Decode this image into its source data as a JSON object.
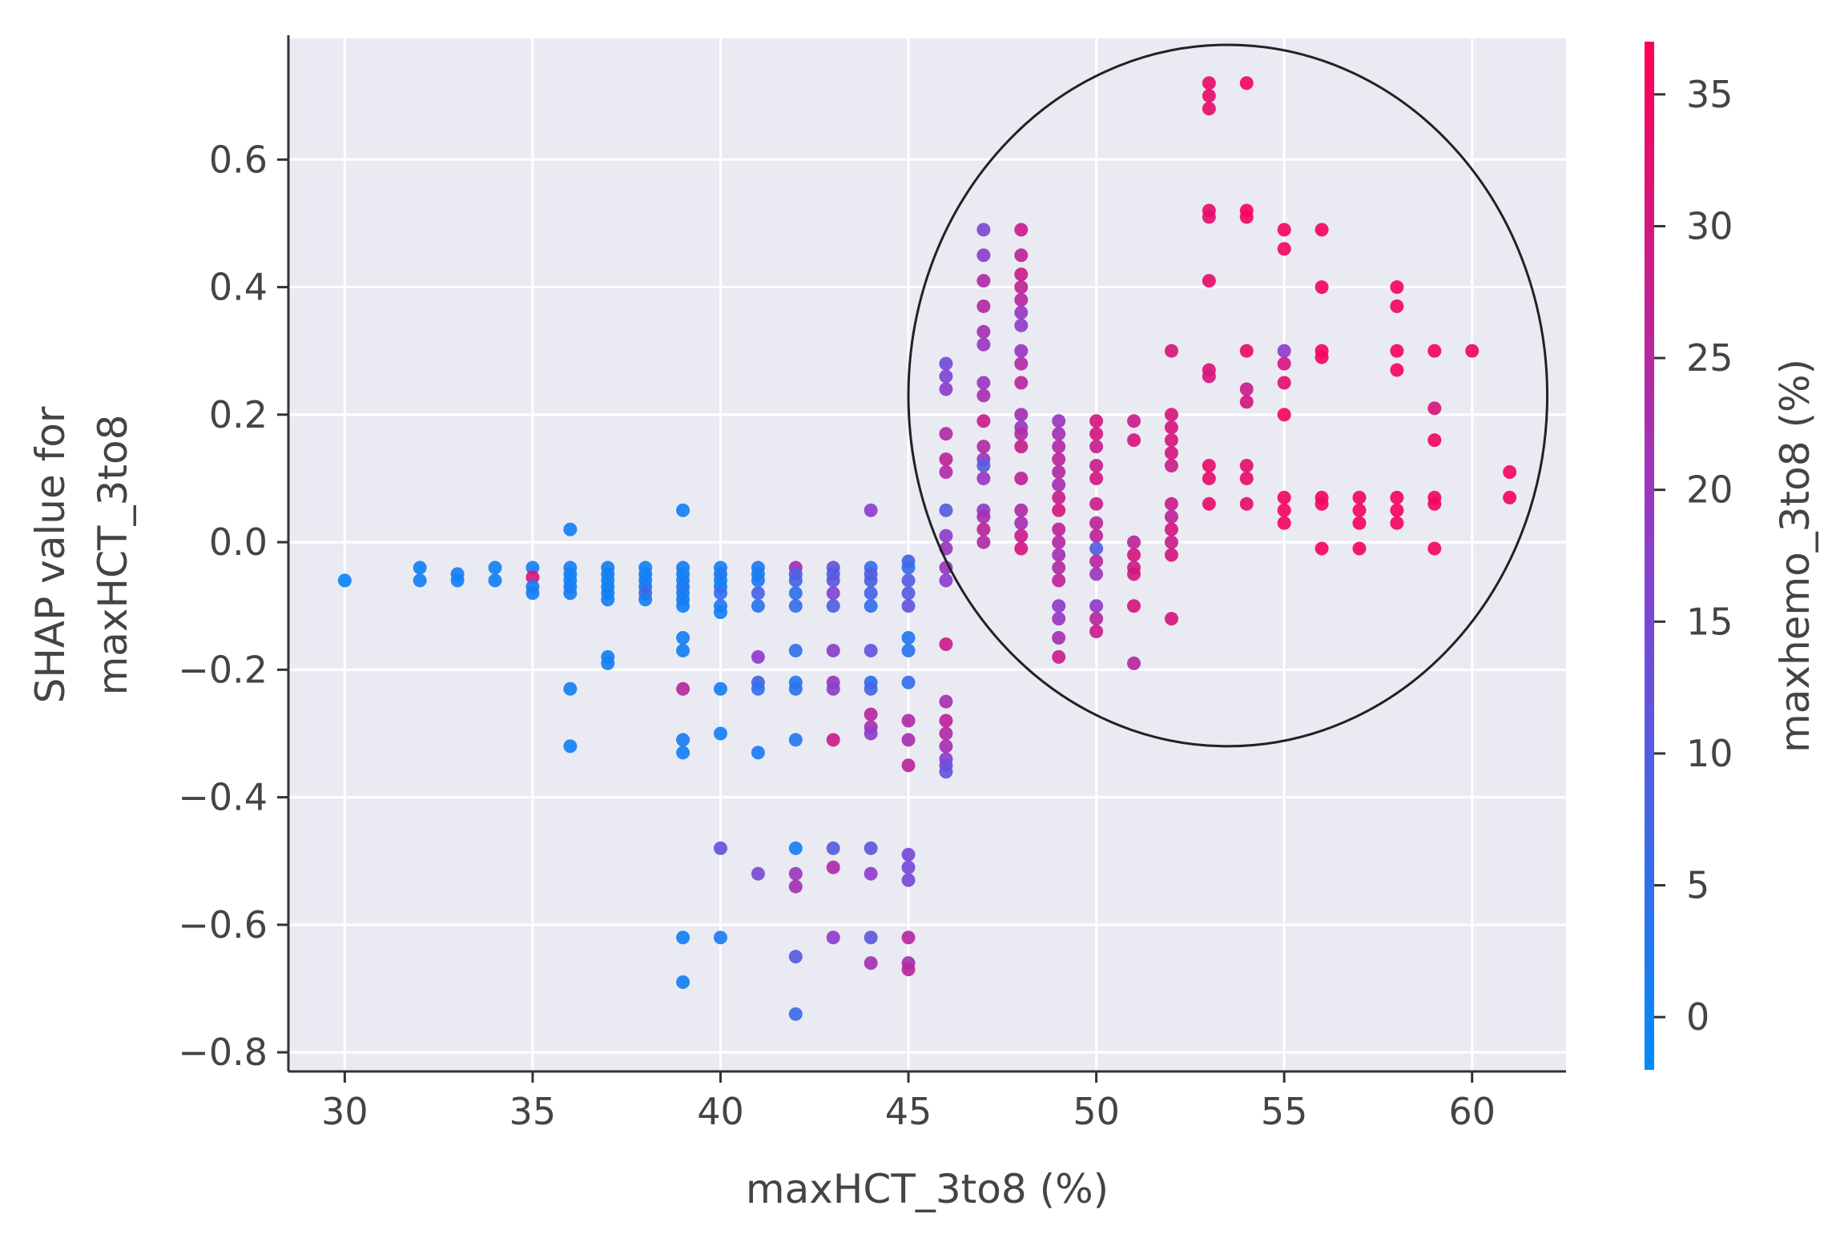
{
  "chart_data": {
    "type": "scatter",
    "xlabel": "maxHCT_3to8 (%)",
    "ylabel_lines": [
      "SHAP value for",
      "maxHCT_3to8"
    ],
    "xlim": [
      28.5,
      62.5
    ],
    "ylim": [
      -0.83,
      0.79
    ],
    "xticks": [
      30,
      35,
      40,
      45,
      50,
      55,
      60
    ],
    "yticks": [
      -0.8,
      -0.6,
      -0.4,
      -0.2,
      0.0,
      0.2,
      0.4,
      0.6
    ],
    "grid": true,
    "background_color": "#eaeaf2",
    "color_low": "#008bfb",
    "color_high": "#ff0052",
    "colorbar": {
      "label": "maxhemo_3to8 (%)",
      "range": [
        -2,
        37
      ],
      "ticks": [
        0,
        5,
        10,
        15,
        20,
        25,
        30,
        35
      ]
    },
    "annotation": {
      "shape": "ellipse",
      "center": [
        53.5,
        0.23
      ],
      "radius_x": 8.5,
      "radius_y": 0.55,
      "description": "circled high-SHAP region"
    },
    "points": [
      [
        30,
        -0.06,
        0
      ],
      [
        32,
        -0.04,
        1
      ],
      [
        32,
        -0.06,
        1
      ],
      [
        33,
        -0.05,
        1
      ],
      [
        33,
        -0.06,
        1
      ],
      [
        34,
        -0.04,
        1
      ],
      [
        34,
        -0.06,
        1
      ],
      [
        35,
        -0.04,
        1
      ],
      [
        35,
        -0.055,
        30
      ],
      [
        35,
        -0.07,
        2
      ],
      [
        35,
        -0.08,
        1
      ],
      [
        36,
        0.02,
        1
      ],
      [
        36,
        -0.04,
        1
      ],
      [
        36,
        -0.05,
        1
      ],
      [
        36,
        -0.06,
        1
      ],
      [
        36,
        -0.07,
        1
      ],
      [
        36,
        -0.08,
        2
      ],
      [
        36,
        -0.23,
        1
      ],
      [
        36,
        -0.32,
        1
      ],
      [
        37,
        -0.04,
        1
      ],
      [
        37,
        -0.05,
        1
      ],
      [
        37,
        -0.06,
        1
      ],
      [
        37,
        -0.07,
        1
      ],
      [
        37,
        -0.08,
        1
      ],
      [
        37,
        -0.09,
        1
      ],
      [
        37,
        -0.18,
        1
      ],
      [
        37,
        -0.19,
        1
      ],
      [
        38,
        -0.04,
        1
      ],
      [
        38,
        -0.05,
        1
      ],
      [
        38,
        -0.06,
        1
      ],
      [
        38,
        -0.07,
        2
      ],
      [
        38,
        -0.08,
        8
      ],
      [
        38,
        -0.09,
        1
      ],
      [
        39,
        0.05,
        1
      ],
      [
        39,
        -0.04,
        1
      ],
      [
        39,
        -0.05,
        1
      ],
      [
        39,
        -0.06,
        1
      ],
      [
        39,
        -0.07,
        2
      ],
      [
        39,
        -0.08,
        3
      ],
      [
        39,
        -0.09,
        1
      ],
      [
        39,
        -0.1,
        1
      ],
      [
        39,
        -0.15,
        1
      ],
      [
        39,
        -0.17,
        1
      ],
      [
        39,
        -0.23,
        25
      ],
      [
        39,
        -0.31,
        2
      ],
      [
        39,
        -0.33,
        1
      ],
      [
        39,
        -0.62,
        1
      ],
      [
        39,
        -0.69,
        1
      ],
      [
        40,
        -0.04,
        1
      ],
      [
        40,
        -0.05,
        3
      ],
      [
        40,
        -0.06,
        1
      ],
      [
        40,
        -0.07,
        1
      ],
      [
        40,
        -0.08,
        5
      ],
      [
        40,
        -0.1,
        2
      ],
      [
        40,
        -0.11,
        1
      ],
      [
        40,
        -0.23,
        1
      ],
      [
        40,
        -0.3,
        1
      ],
      [
        40,
        -0.48,
        12
      ],
      [
        40,
        -0.62,
        2
      ],
      [
        41,
        -0.04,
        3
      ],
      [
        41,
        -0.05,
        1
      ],
      [
        41,
        -0.06,
        2
      ],
      [
        41,
        -0.08,
        8
      ],
      [
        41,
        -0.1,
        4
      ],
      [
        41,
        -0.18,
        18
      ],
      [
        41,
        -0.22,
        8
      ],
      [
        41,
        -0.23,
        5
      ],
      [
        41,
        -0.33,
        2
      ],
      [
        41,
        -0.52,
        15
      ],
      [
        42,
        -0.04,
        22
      ],
      [
        42,
        -0.05,
        10
      ],
      [
        42,
        -0.06,
        8
      ],
      [
        42,
        -0.08,
        5
      ],
      [
        42,
        -0.1,
        6
      ],
      [
        42,
        -0.17,
        5
      ],
      [
        42,
        -0.22,
        3
      ],
      [
        42,
        -0.23,
        4
      ],
      [
        42,
        -0.31,
        3
      ],
      [
        42,
        -0.48,
        1
      ],
      [
        42,
        -0.52,
        20
      ],
      [
        42,
        -0.54,
        22
      ],
      [
        42,
        -0.65,
        10
      ],
      [
        42,
        -0.74,
        6
      ],
      [
        43,
        -0.04,
        12
      ],
      [
        43,
        -0.05,
        10
      ],
      [
        43,
        -0.06,
        11
      ],
      [
        43,
        -0.08,
        16
      ],
      [
        43,
        -0.1,
        9
      ],
      [
        43,
        -0.17,
        18
      ],
      [
        43,
        -0.22,
        20
      ],
      [
        43,
        -0.23,
        18
      ],
      [
        43,
        -0.31,
        28
      ],
      [
        43,
        -0.48,
        10
      ],
      [
        43,
        -0.51,
        24
      ],
      [
        43,
        -0.62,
        18
      ],
      [
        44,
        0.05,
        18
      ],
      [
        44,
        -0.04,
        6
      ],
      [
        44,
        -0.05,
        10
      ],
      [
        44,
        -0.06,
        9
      ],
      [
        44,
        -0.08,
        8
      ],
      [
        44,
        -0.1,
        5
      ],
      [
        44,
        -0.17,
        12
      ],
      [
        44,
        -0.22,
        4
      ],
      [
        44,
        -0.23,
        8
      ],
      [
        44,
        -0.27,
        25
      ],
      [
        44,
        -0.29,
        22
      ],
      [
        44,
        -0.3,
        18
      ],
      [
        44,
        -0.48,
        11
      ],
      [
        44,
        -0.52,
        18
      ],
      [
        44,
        -0.62,
        11
      ],
      [
        44,
        -0.66,
        22
      ],
      [
        45,
        -0.03,
        8
      ],
      [
        45,
        -0.04,
        6
      ],
      [
        45,
        -0.06,
        10
      ],
      [
        45,
        -0.08,
        10
      ],
      [
        45,
        -0.1,
        12
      ],
      [
        45,
        -0.15,
        3
      ],
      [
        45,
        -0.17,
        4
      ],
      [
        45,
        -0.22,
        5
      ],
      [
        45,
        -0.28,
        24
      ],
      [
        45,
        -0.31,
        22
      ],
      [
        45,
        -0.35,
        25
      ],
      [
        45,
        -0.49,
        15
      ],
      [
        45,
        -0.51,
        15
      ],
      [
        45,
        -0.53,
        15
      ],
      [
        45,
        -0.62,
        25
      ],
      [
        45,
        -0.66,
        22
      ],
      [
        45,
        -0.67,
        25
      ],
      [
        46,
        0.28,
        14
      ],
      [
        46,
        0.26,
        16
      ],
      [
        46,
        0.24,
        18
      ],
      [
        46,
        0.17,
        24
      ],
      [
        46,
        0.13,
        26
      ],
      [
        46,
        0.11,
        24
      ],
      [
        46,
        0.05,
        10
      ],
      [
        46,
        0.01,
        18
      ],
      [
        46,
        -0.01,
        20
      ],
      [
        46,
        -0.04,
        20
      ],
      [
        46,
        -0.06,
        18
      ],
      [
        46,
        -0.16,
        28
      ],
      [
        46,
        -0.25,
        22
      ],
      [
        46,
        -0.28,
        26
      ],
      [
        46,
        -0.3,
        24
      ],
      [
        46,
        -0.32,
        22
      ],
      [
        46,
        -0.34,
        18
      ],
      [
        46,
        -0.35,
        14
      ],
      [
        46,
        -0.36,
        12
      ],
      [
        47,
        0.49,
        16
      ],
      [
        47,
        0.45,
        18
      ],
      [
        47,
        0.41,
        24
      ],
      [
        47,
        0.37,
        24
      ],
      [
        47,
        0.33,
        22
      ],
      [
        47,
        0.31,
        20
      ],
      [
        47,
        0.25,
        20
      ],
      [
        47,
        0.23,
        22
      ],
      [
        47,
        0.19,
        28
      ],
      [
        47,
        0.15,
        24
      ],
      [
        47,
        0.13,
        20
      ],
      [
        47,
        0.12,
        10
      ],
      [
        47,
        0.1,
        20
      ],
      [
        47,
        0.05,
        18
      ],
      [
        47,
        0.04,
        22
      ],
      [
        47,
        0.02,
        26
      ],
      [
        47,
        0.0,
        24
      ],
      [
        48,
        0.49,
        28
      ],
      [
        48,
        0.45,
        26
      ],
      [
        48,
        0.42,
        28
      ],
      [
        48,
        0.4,
        26
      ],
      [
        48,
        0.38,
        25
      ],
      [
        48,
        0.36,
        20
      ],
      [
        48,
        0.34,
        18
      ],
      [
        48,
        0.3,
        20
      ],
      [
        48,
        0.28,
        24
      ],
      [
        48,
        0.25,
        25
      ],
      [
        48,
        0.2,
        22
      ],
      [
        48,
        0.18,
        20
      ],
      [
        48,
        0.17,
        24
      ],
      [
        48,
        0.15,
        28
      ],
      [
        48,
        0.1,
        26
      ],
      [
        48,
        0.05,
        24
      ],
      [
        48,
        0.03,
        22
      ],
      [
        48,
        0.01,
        28
      ],
      [
        48,
        -0.01,
        30
      ],
      [
        49,
        0.19,
        20
      ],
      [
        49,
        0.17,
        22
      ],
      [
        49,
        0.15,
        24
      ],
      [
        49,
        0.13,
        26
      ],
      [
        49,
        0.11,
        24
      ],
      [
        49,
        0.09,
        22
      ],
      [
        49,
        0.07,
        28
      ],
      [
        49,
        0.05,
        30
      ],
      [
        49,
        0.02,
        26
      ],
      [
        49,
        0.0,
        24
      ],
      [
        49,
        -0.02,
        22
      ],
      [
        49,
        -0.04,
        24
      ],
      [
        49,
        -0.06,
        26
      ],
      [
        49,
        -0.1,
        18
      ],
      [
        49,
        -0.12,
        20
      ],
      [
        49,
        -0.15,
        22
      ],
      [
        49,
        -0.18,
        28
      ],
      [
        50,
        0.19,
        30
      ],
      [
        50,
        0.17,
        30
      ],
      [
        50,
        0.15,
        28
      ],
      [
        50,
        0.12,
        28
      ],
      [
        50,
        0.1,
        30
      ],
      [
        50,
        0.06,
        28
      ],
      [
        50,
        0.03,
        26
      ],
      [
        50,
        0.01,
        26
      ],
      [
        50,
        -0.01,
        10
      ],
      [
        50,
        -0.03,
        25
      ],
      [
        50,
        -0.05,
        20
      ],
      [
        50,
        -0.1,
        18
      ],
      [
        50,
        -0.12,
        25
      ],
      [
        50,
        -0.14,
        28
      ],
      [
        51,
        0.19,
        28
      ],
      [
        51,
        0.16,
        30
      ],
      [
        51,
        0.0,
        26
      ],
      [
        51,
        -0.02,
        30
      ],
      [
        51,
        -0.04,
        28
      ],
      [
        51,
        -0.05,
        30
      ],
      [
        51,
        -0.1,
        30
      ],
      [
        51,
        -0.19,
        25
      ],
      [
        52,
        0.3,
        30
      ],
      [
        52,
        0.2,
        30
      ],
      [
        52,
        0.18,
        30
      ],
      [
        52,
        0.16,
        30
      ],
      [
        52,
        0.14,
        30
      ],
      [
        52,
        0.12,
        28
      ],
      [
        52,
        0.06,
        28
      ],
      [
        52,
        0.04,
        26
      ],
      [
        52,
        0.02,
        30
      ],
      [
        52,
        0.0,
        28
      ],
      [
        52,
        -0.02,
        30
      ],
      [
        52,
        -0.12,
        30
      ],
      [
        53,
        0.72,
        33
      ],
      [
        53,
        0.7,
        33
      ],
      [
        53,
        0.68,
        33
      ],
      [
        53,
        0.52,
        33
      ],
      [
        53,
        0.51,
        33
      ],
      [
        53,
        0.41,
        33
      ],
      [
        53,
        0.27,
        31
      ],
      [
        53,
        0.26,
        30
      ],
      [
        53,
        0.12,
        33
      ],
      [
        53,
        0.1,
        33
      ],
      [
        53,
        0.06,
        33
      ],
      [
        54,
        0.72,
        35
      ],
      [
        54,
        0.52,
        35
      ],
      [
        54,
        0.51,
        35
      ],
      [
        54,
        0.3,
        33
      ],
      [
        54,
        0.24,
        28
      ],
      [
        54,
        0.22,
        30
      ],
      [
        54,
        0.12,
        33
      ],
      [
        54,
        0.1,
        33
      ],
      [
        54,
        0.06,
        33
      ],
      [
        55,
        0.49,
        35
      ],
      [
        55,
        0.46,
        35
      ],
      [
        55,
        0.3,
        18
      ],
      [
        55,
        0.28,
        30
      ],
      [
        55,
        0.25,
        32
      ],
      [
        55,
        0.2,
        35
      ],
      [
        55,
        0.07,
        35
      ],
      [
        55,
        0.05,
        35
      ],
      [
        55,
        0.03,
        35
      ],
      [
        56,
        0.49,
        35
      ],
      [
        56,
        0.4,
        35
      ],
      [
        56,
        0.3,
        35
      ],
      [
        56,
        0.29,
        35
      ],
      [
        56,
        0.07,
        35
      ],
      [
        56,
        0.06,
        35
      ],
      [
        56,
        -0.01,
        35
      ],
      [
        57,
        0.07,
        35
      ],
      [
        57,
        0.05,
        35
      ],
      [
        57,
        0.03,
        35
      ],
      [
        57,
        -0.01,
        35
      ],
      [
        58,
        0.4,
        35
      ],
      [
        58,
        0.37,
        35
      ],
      [
        58,
        0.3,
        35
      ],
      [
        58,
        0.27,
        35
      ],
      [
        58,
        0.07,
        35
      ],
      [
        58,
        0.05,
        35
      ],
      [
        58,
        0.03,
        35
      ],
      [
        59,
        0.3,
        35
      ],
      [
        59,
        0.21,
        30
      ],
      [
        59,
        0.16,
        35
      ],
      [
        59,
        0.07,
        35
      ],
      [
        59,
        0.06,
        35
      ],
      [
        59,
        -0.01,
        35
      ],
      [
        60,
        0.3,
        35
      ],
      [
        61,
        0.11,
        35
      ],
      [
        61,
        0.07,
        35
      ]
    ]
  }
}
